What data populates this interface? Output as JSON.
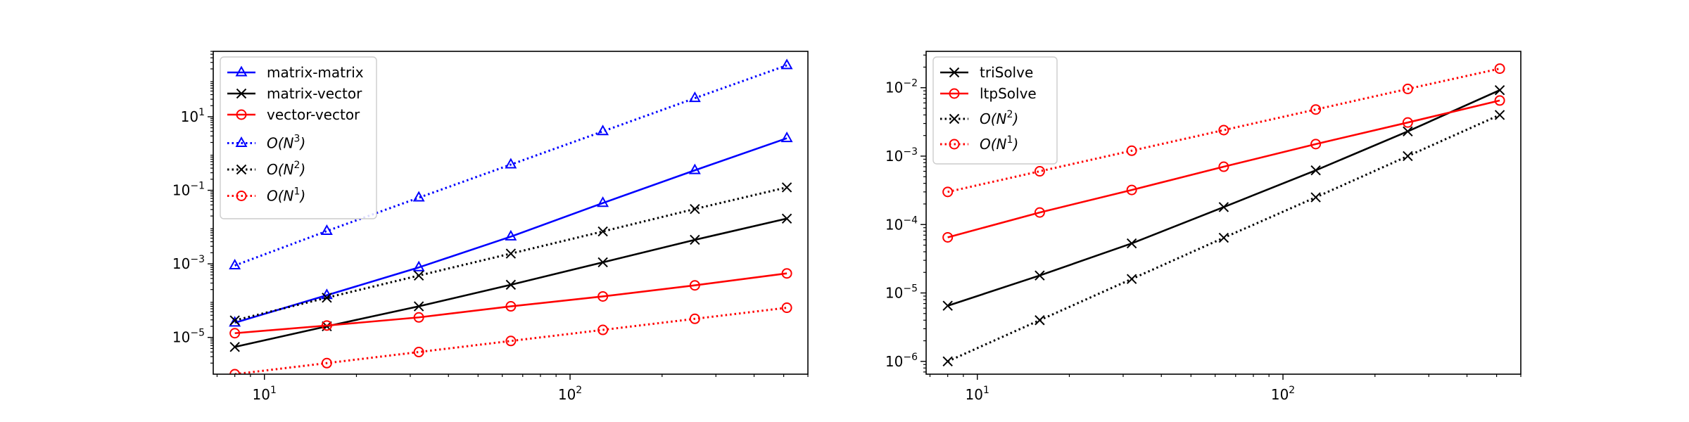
{
  "chart_data": [
    {
      "type": "line",
      "title": "",
      "xlabel": "",
      "ylabel": "",
      "xscale": "log",
      "yscale": "log",
      "xlim": [
        6.8,
        600
      ],
      "ylim": [
        1e-06,
        600
      ],
      "grid": false,
      "legend_position": "upper-left",
      "x_ticks": [
        {
          "value": 10,
          "base": "10",
          "exp": "1"
        },
        {
          "value": 100,
          "base": "10",
          "exp": "2"
        }
      ],
      "y_ticks": [
        {
          "value": 1e-05,
          "base": "10",
          "exp": "−5"
        },
        {
          "value": 0.001,
          "base": "10",
          "exp": "−3"
        },
        {
          "value": 0.1,
          "base": "10",
          "exp": "−1"
        },
        {
          "value": 10,
          "base": "10",
          "exp": "1"
        }
      ],
      "x": [
        8,
        16,
        32,
        64,
        128,
        256,
        512
      ],
      "series": [
        {
          "legend": [
            "matrix-matrix"
          ],
          "color": "#0000ff",
          "linestyle": "solid",
          "marker": "triangle",
          "values": [
            2.5e-05,
            0.00014,
            0.0008,
            0.0055,
            0.045,
            0.35,
            2.6
          ]
        },
        {
          "legend": [
            "matrix-vector"
          ],
          "color": "#000000",
          "linestyle": "solid",
          "marker": "x",
          "values": [
            5.5e-06,
            2e-05,
            7e-05,
            0.00027,
            0.0011,
            0.0045,
            0.017
          ]
        },
        {
          "legend": [
            "vector-vector"
          ],
          "color": "#ff0000",
          "linestyle": "solid",
          "marker": "circle",
          "values": [
            1.3e-05,
            2.1e-05,
            3.5e-05,
            7e-05,
            0.00013,
            0.00026,
            0.00055
          ]
        },
        {
          "legend": [
            "O(N",
            "3",
            ")"
          ],
          "color": "#0000ff",
          "linestyle": "dotted",
          "marker": "triangle",
          "values": [
            0.0009,
            0.0078,
            0.063,
            0.5,
            4.0,
            32,
            250
          ]
        },
        {
          "legend": [
            "O(N",
            "2",
            ")"
          ],
          "color": "#000000",
          "linestyle": "dotted",
          "marker": "x",
          "values": [
            2.9e-05,
            0.00012,
            0.00048,
            0.0019,
            0.0076,
            0.031,
            0.12
          ]
        },
        {
          "legend": [
            "O(N",
            "1",
            ")"
          ],
          "color": "#ff0000",
          "linestyle": "dotted",
          "marker": "circle",
          "values": [
            1e-06,
            2e-06,
            4e-06,
            8e-06,
            1.6e-05,
            3.2e-05,
            6.4e-05
          ]
        }
      ]
    },
    {
      "type": "line",
      "title": "",
      "xlabel": "",
      "ylabel": "",
      "xscale": "log",
      "yscale": "log",
      "xlim": [
        6.8,
        600
      ],
      "ylim": [
        6.5e-07,
        0.034
      ],
      "grid": false,
      "legend_position": "upper-left",
      "x_ticks": [
        {
          "value": 10,
          "base": "10",
          "exp": "1"
        },
        {
          "value": 100,
          "base": "10",
          "exp": "2"
        }
      ],
      "y_ticks": [
        {
          "value": 1e-06,
          "base": "10",
          "exp": "−6"
        },
        {
          "value": 1e-05,
          "base": "10",
          "exp": "−5"
        },
        {
          "value": 0.0001,
          "base": "10",
          "exp": "−4"
        },
        {
          "value": 0.001,
          "base": "10",
          "exp": "−3"
        },
        {
          "value": 0.01,
          "base": "10",
          "exp": "−2"
        }
      ],
      "x": [
        8,
        16,
        32,
        64,
        128,
        256,
        512
      ],
      "series": [
        {
          "legend": [
            "triSolve"
          ],
          "color": "#000000",
          "linestyle": "solid",
          "marker": "x",
          "values": [
            6.5e-06,
            1.8e-05,
            5.3e-05,
            0.00018,
            0.00062,
            0.0023,
            0.0092
          ]
        },
        {
          "legend": [
            "ltpSolve"
          ],
          "color": "#ff0000",
          "linestyle": "solid",
          "marker": "circle",
          "values": [
            6.5e-05,
            0.00015,
            0.00032,
            0.0007,
            0.0015,
            0.0031,
            0.0065
          ]
        },
        {
          "legend": [
            "O(N",
            "2",
            ")"
          ],
          "color": "#000000",
          "linestyle": "dotted",
          "marker": "x",
          "values": [
            1e-06,
            4e-06,
            1.6e-05,
            6.4e-05,
            0.00025,
            0.001,
            0.004
          ]
        },
        {
          "legend": [
            "O(N",
            "1",
            ")"
          ],
          "color": "#ff0000",
          "linestyle": "dotted",
          "marker": "circle",
          "values": [
            0.0003,
            0.0006,
            0.0012,
            0.0024,
            0.0048,
            0.0096,
            0.019
          ]
        }
      ]
    }
  ]
}
